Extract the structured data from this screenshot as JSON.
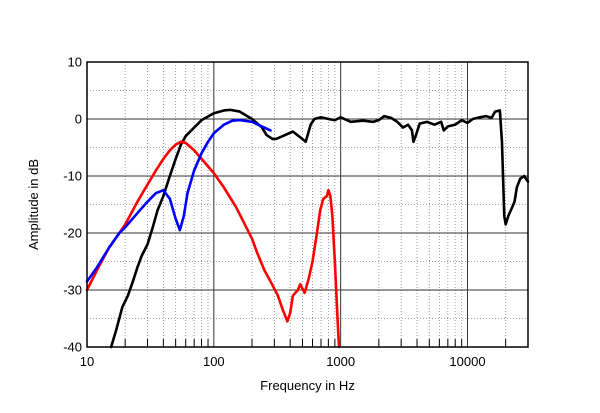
{
  "chart_data": {
    "type": "line",
    "title": "",
    "xlabel": "Frequency in Hz",
    "ylabel": "Amplitude in dB",
    "x_scale": "log",
    "xlim": [
      10,
      30000
    ],
    "ylim": [
      -40,
      10
    ],
    "x_ticks": [
      {
        "value": 10,
        "label": "10"
      },
      {
        "value": 100,
        "label": "100"
      },
      {
        "value": 1000,
        "label": "1000"
      },
      {
        "value": 10000,
        "label": "10000"
      }
    ],
    "y_ticks": [
      {
        "value": 10,
        "label": "10"
      },
      {
        "value": 0,
        "label": "0"
      },
      {
        "value": -10,
        "label": "-10"
      },
      {
        "value": -20,
        "label": "-20"
      },
      {
        "value": -30,
        "label": "-30"
      },
      {
        "value": -40,
        "label": "-40"
      }
    ],
    "grid": true,
    "series": [
      {
        "color": "#000000",
        "points": [
          [
            15.5,
            -40
          ],
          [
            17,
            -37
          ],
          [
            19,
            -33
          ],
          [
            21,
            -31
          ],
          [
            23,
            -28.5
          ],
          [
            25,
            -26
          ],
          [
            27,
            -24
          ],
          [
            30,
            -22
          ],
          [
            33,
            -19
          ],
          [
            36,
            -16
          ],
          [
            40,
            -13.5
          ],
          [
            45,
            -10
          ],
          [
            50,
            -7
          ],
          [
            55,
            -4.5
          ],
          [
            60,
            -3
          ],
          [
            70,
            -1.5
          ],
          [
            80,
            -0.2
          ],
          [
            100,
            1
          ],
          [
            120,
            1.5
          ],
          [
            135,
            1.6
          ],
          [
            160,
            1.3
          ],
          [
            200,
            0
          ],
          [
            240,
            -1.5
          ],
          [
            260,
            -2.8
          ],
          [
            290,
            -3.5
          ],
          [
            310,
            -3.5
          ],
          [
            350,
            -3
          ],
          [
            420,
            -2.2
          ],
          [
            480,
            -3.2
          ],
          [
            530,
            -4
          ],
          [
            580,
            -1
          ],
          [
            620,
            0
          ],
          [
            700,
            0.3
          ],
          [
            800,
            0
          ],
          [
            900,
            -0.2
          ],
          [
            1000,
            0.3
          ],
          [
            1200,
            -0.5
          ],
          [
            1500,
            -0.3
          ],
          [
            1800,
            -0.5
          ],
          [
            2000,
            -0.2
          ],
          [
            2200,
            0.5
          ],
          [
            2500,
            0.2
          ],
          [
            2800,
            -0.5
          ],
          [
            3100,
            -1.5
          ],
          [
            3400,
            -1
          ],
          [
            3650,
            -2
          ],
          [
            3750,
            -4
          ],
          [
            3900,
            -3
          ],
          [
            4200,
            -0.8
          ],
          [
            4800,
            -0.5
          ],
          [
            5500,
            -1
          ],
          [
            6200,
            -0.5
          ],
          [
            6500,
            -2
          ],
          [
            7000,
            -1.3
          ],
          [
            8000,
            -1
          ],
          [
            9000,
            -0.2
          ],
          [
            10000,
            -0.7
          ],
          [
            11000,
            0
          ],
          [
            12500,
            0.3
          ],
          [
            14000,
            0.5
          ],
          [
            15500,
            0.2
          ],
          [
            16500,
            1.3
          ],
          [
            18000,
            1.5
          ],
          [
            18700,
            -4
          ],
          [
            19500,
            -17
          ],
          [
            20000,
            -18.5
          ],
          [
            21000,
            -17
          ],
          [
            22500,
            -15.5
          ],
          [
            23500,
            -14.5
          ],
          [
            24500,
            -12
          ],
          [
            26000,
            -10.5
          ],
          [
            28000,
            -10
          ],
          [
            30000,
            -11
          ]
        ]
      },
      {
        "color": "#ff0000",
        "points": [
          [
            10,
            -30
          ],
          [
            12,
            -26.5
          ],
          [
            15,
            -22.5
          ],
          [
            18,
            -20
          ],
          [
            20,
            -18.5
          ],
          [
            25,
            -14.5
          ],
          [
            30,
            -11.5
          ],
          [
            35,
            -9
          ],
          [
            40,
            -7
          ],
          [
            45,
            -5.5
          ],
          [
            50,
            -4.5
          ],
          [
            55,
            -4
          ],
          [
            60,
            -4.2
          ],
          [
            70,
            -5.5
          ],
          [
            80,
            -7
          ],
          [
            100,
            -9.5
          ],
          [
            120,
            -12
          ],
          [
            150,
            -15.5
          ],
          [
            200,
            -21
          ],
          [
            220,
            -23.5
          ],
          [
            250,
            -26.5
          ],
          [
            280,
            -28.5
          ],
          [
            320,
            -31
          ],
          [
            350,
            -33.5
          ],
          [
            380,
            -35.5
          ],
          [
            400,
            -34
          ],
          [
            420,
            -31
          ],
          [
            460,
            -30
          ],
          [
            480,
            -29
          ],
          [
            520,
            -30.5
          ],
          [
            560,
            -28
          ],
          [
            600,
            -25
          ],
          [
            650,
            -20
          ],
          [
            690,
            -16
          ],
          [
            730,
            -14
          ],
          [
            780,
            -13.5
          ],
          [
            800,
            -12.5
          ],
          [
            830,
            -13.5
          ],
          [
            860,
            -17
          ],
          [
            900,
            -25
          ],
          [
            940,
            -34
          ],
          [
            970,
            -40
          ]
        ]
      },
      {
        "color": "#0000ff",
        "points": [
          [
            10,
            -28.5
          ],
          [
            12,
            -26
          ],
          [
            15,
            -22.5
          ],
          [
            18,
            -20
          ],
          [
            20,
            -19
          ],
          [
            25,
            -16.5
          ],
          [
            30,
            -14.5
          ],
          [
            35,
            -13
          ],
          [
            40,
            -12.5
          ],
          [
            45,
            -14
          ],
          [
            50,
            -17.5
          ],
          [
            54,
            -19.5
          ],
          [
            58,
            -17
          ],
          [
            62,
            -13
          ],
          [
            70,
            -9
          ],
          [
            80,
            -6
          ],
          [
            90,
            -4
          ],
          [
            100,
            -2.5
          ],
          [
            120,
            -1
          ],
          [
            140,
            -0.3
          ],
          [
            160,
            -0.2
          ],
          [
            200,
            -0.5
          ],
          [
            250,
            -1.5
          ],
          [
            280,
            -2
          ]
        ]
      }
    ]
  }
}
